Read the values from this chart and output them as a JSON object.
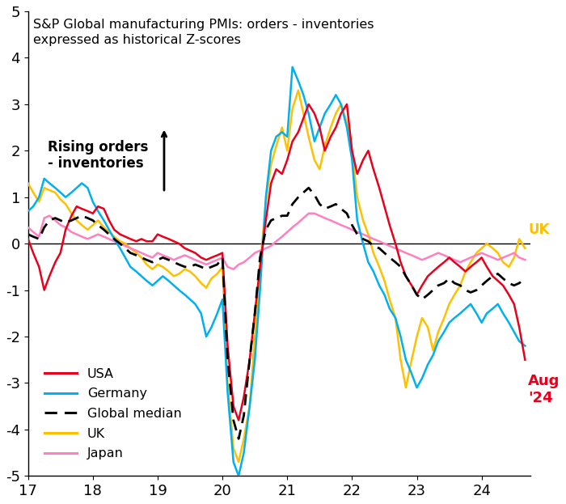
{
  "title_line1": "S&P Global manufacturing PMIs: orders - inventories",
  "title_line2": "expressed as historical Z-scores",
  "annotation_text": "Rising orders\n- inventories",
  "ylim": [
    -5,
    5
  ],
  "xlim": [
    17,
    24.75
  ],
  "yticks": [
    -5,
    -4,
    -3,
    -2,
    -1,
    0,
    1,
    2,
    3,
    4,
    5
  ],
  "xticks": [
    17,
    18,
    19,
    20,
    21,
    22,
    23,
    24
  ],
  "colors": {
    "USA": "#e8001c",
    "Germany": "#00b0f0",
    "Global_median": "#000000",
    "UK": "#ffc000",
    "Japan": "#ff80c0"
  },
  "usa": {
    "x": [
      17.0,
      17.08,
      17.17,
      17.25,
      17.33,
      17.42,
      17.5,
      17.58,
      17.67,
      17.75,
      17.83,
      17.92,
      18.0,
      18.08,
      18.17,
      18.25,
      18.33,
      18.42,
      18.5,
      18.58,
      18.67,
      18.75,
      18.83,
      18.92,
      19.0,
      19.08,
      19.17,
      19.25,
      19.33,
      19.42,
      19.5,
      19.58,
      19.67,
      19.75,
      19.83,
      19.92,
      20.0,
      20.08,
      20.17,
      20.25,
      20.33,
      20.42,
      20.5,
      20.58,
      20.67,
      20.75,
      20.83,
      20.92,
      21.0,
      21.08,
      21.17,
      21.25,
      21.33,
      21.42,
      21.5,
      21.58,
      21.67,
      21.75,
      21.83,
      21.92,
      22.0,
      22.08,
      22.17,
      22.25,
      22.33,
      22.42,
      22.5,
      22.58,
      22.67,
      22.75,
      22.83,
      22.92,
      23.0,
      23.08,
      23.17,
      23.25,
      23.33,
      23.42,
      23.5,
      23.58,
      23.67,
      23.75,
      23.83,
      23.92,
      24.0,
      24.08,
      24.17,
      24.25,
      24.33,
      24.42,
      24.5,
      24.58,
      24.67
    ],
    "y": [
      0.1,
      -0.2,
      -0.5,
      -1.0,
      -0.7,
      -0.4,
      -0.2,
      0.3,
      0.6,
      0.8,
      0.75,
      0.7,
      0.65,
      0.8,
      0.75,
      0.5,
      0.3,
      0.2,
      0.15,
      0.1,
      0.05,
      0.1,
      0.05,
      0.05,
      0.2,
      0.15,
      0.1,
      0.05,
      0.0,
      -0.1,
      -0.15,
      -0.2,
      -0.3,
      -0.35,
      -0.3,
      -0.25,
      -0.2,
      -2.2,
      -3.5,
      -3.8,
      -3.3,
      -2.5,
      -1.5,
      -0.5,
      0.5,
      1.3,
      1.6,
      1.5,
      1.8,
      2.2,
      2.4,
      2.7,
      3.0,
      2.8,
      2.5,
      2.0,
      2.3,
      2.5,
      2.8,
      3.0,
      2.0,
      1.5,
      1.8,
      2.0,
      1.6,
      1.2,
      0.8,
      0.4,
      0.0,
      -0.4,
      -0.7,
      -0.9,
      -1.1,
      -0.9,
      -0.7,
      -0.6,
      -0.5,
      -0.4,
      -0.3,
      -0.4,
      -0.5,
      -0.6,
      -0.5,
      -0.4,
      -0.3,
      -0.5,
      -0.7,
      -0.8,
      -0.9,
      -1.1,
      -1.3,
      -1.8,
      -2.5
    ]
  },
  "germany": {
    "x": [
      17.0,
      17.08,
      17.17,
      17.25,
      17.33,
      17.42,
      17.5,
      17.58,
      17.67,
      17.75,
      17.83,
      17.92,
      18.0,
      18.08,
      18.17,
      18.25,
      18.33,
      18.42,
      18.5,
      18.58,
      18.67,
      18.75,
      18.83,
      18.92,
      19.0,
      19.08,
      19.17,
      19.25,
      19.33,
      19.42,
      19.5,
      19.58,
      19.67,
      19.75,
      19.83,
      19.92,
      20.0,
      20.08,
      20.17,
      20.25,
      20.33,
      20.42,
      20.5,
      20.58,
      20.67,
      20.75,
      20.83,
      20.92,
      21.0,
      21.08,
      21.17,
      21.25,
      21.33,
      21.42,
      21.5,
      21.58,
      21.67,
      21.75,
      21.83,
      21.92,
      22.0,
      22.08,
      22.17,
      22.25,
      22.33,
      22.42,
      22.5,
      22.58,
      22.67,
      22.75,
      22.83,
      22.92,
      23.0,
      23.08,
      23.17,
      23.25,
      23.33,
      23.42,
      23.5,
      23.58,
      23.67,
      23.75,
      23.83,
      23.92,
      24.0,
      24.08,
      24.17,
      24.25,
      24.33,
      24.42,
      24.5,
      24.58,
      24.67
    ],
    "y": [
      0.7,
      0.8,
      1.0,
      1.4,
      1.3,
      1.2,
      1.1,
      1.0,
      1.1,
      1.2,
      1.3,
      1.2,
      0.9,
      0.7,
      0.5,
      0.3,
      0.1,
      -0.1,
      -0.3,
      -0.5,
      -0.6,
      -0.7,
      -0.8,
      -0.9,
      -0.8,
      -0.7,
      -0.8,
      -0.9,
      -1.0,
      -1.1,
      -1.2,
      -1.3,
      -1.5,
      -2.0,
      -1.8,
      -1.5,
      -1.2,
      -3.2,
      -4.7,
      -5.0,
      -4.5,
      -3.5,
      -2.5,
      -1.0,
      1.0,
      2.0,
      2.3,
      2.4,
      2.3,
      3.8,
      3.5,
      3.2,
      2.8,
      2.2,
      2.5,
      2.8,
      3.0,
      3.2,
      3.0,
      2.5,
      1.8,
      0.5,
      0.0,
      -0.4,
      -0.6,
      -0.9,
      -1.1,
      -1.4,
      -1.6,
      -2.0,
      -2.5,
      -2.8,
      -3.1,
      -2.9,
      -2.6,
      -2.4,
      -2.1,
      -1.9,
      -1.7,
      -1.6,
      -1.5,
      -1.4,
      -1.3,
      -1.5,
      -1.7,
      -1.5,
      -1.4,
      -1.3,
      -1.5,
      -1.7,
      -1.9,
      -2.1,
      -2.2
    ]
  },
  "global_median": {
    "x": [
      17.0,
      17.08,
      17.17,
      17.25,
      17.33,
      17.42,
      17.5,
      17.58,
      17.67,
      17.75,
      17.83,
      17.92,
      18.0,
      18.08,
      18.17,
      18.25,
      18.33,
      18.42,
      18.5,
      18.58,
      18.67,
      18.75,
      18.83,
      18.92,
      19.0,
      19.08,
      19.17,
      19.25,
      19.33,
      19.42,
      19.5,
      19.58,
      19.67,
      19.75,
      19.83,
      19.92,
      20.0,
      20.08,
      20.17,
      20.25,
      20.33,
      20.42,
      20.5,
      20.58,
      20.67,
      20.75,
      20.83,
      20.92,
      21.0,
      21.08,
      21.17,
      21.25,
      21.33,
      21.42,
      21.5,
      21.58,
      21.67,
      21.75,
      21.83,
      21.92,
      22.0,
      22.08,
      22.17,
      22.25,
      22.33,
      22.42,
      22.5,
      22.58,
      22.67,
      22.75,
      22.83,
      22.92,
      23.0,
      23.08,
      23.17,
      23.25,
      23.33,
      23.42,
      23.5,
      23.58,
      23.67,
      23.75,
      23.83,
      23.92,
      24.0,
      24.08,
      24.17,
      24.25,
      24.33,
      24.42,
      24.5,
      24.58,
      24.67
    ],
    "y": [
      0.2,
      0.15,
      0.1,
      0.35,
      0.5,
      0.55,
      0.5,
      0.45,
      0.5,
      0.55,
      0.6,
      0.55,
      0.5,
      0.4,
      0.3,
      0.2,
      0.1,
      0.0,
      -0.1,
      -0.2,
      -0.25,
      -0.3,
      -0.35,
      -0.4,
      -0.35,
      -0.3,
      -0.35,
      -0.4,
      -0.45,
      -0.5,
      -0.5,
      -0.45,
      -0.5,
      -0.55,
      -0.5,
      -0.45,
      -0.3,
      -2.5,
      -3.8,
      -4.2,
      -3.7,
      -2.5,
      -1.5,
      -0.3,
      0.3,
      0.5,
      0.55,
      0.6,
      0.6,
      0.85,
      1.0,
      1.1,
      1.2,
      1.05,
      0.85,
      0.75,
      0.8,
      0.85,
      0.75,
      0.65,
      0.4,
      0.2,
      0.1,
      0.05,
      -0.05,
      -0.1,
      -0.2,
      -0.3,
      -0.4,
      -0.5,
      -0.7,
      -0.9,
      -1.1,
      -1.2,
      -1.1,
      -1.0,
      -0.9,
      -0.85,
      -0.75,
      -0.85,
      -0.9,
      -1.0,
      -1.05,
      -1.0,
      -0.9,
      -0.8,
      -0.7,
      -0.65,
      -0.75,
      -0.85,
      -0.9,
      -0.85,
      -0.75
    ]
  },
  "uk": {
    "x": [
      17.0,
      17.08,
      17.17,
      17.25,
      17.33,
      17.42,
      17.5,
      17.58,
      17.67,
      17.75,
      17.83,
      17.92,
      18.0,
      18.08,
      18.17,
      18.25,
      18.33,
      18.42,
      18.5,
      18.58,
      18.67,
      18.75,
      18.83,
      18.92,
      19.0,
      19.08,
      19.17,
      19.25,
      19.33,
      19.42,
      19.5,
      19.58,
      19.67,
      19.75,
      19.83,
      19.92,
      20.0,
      20.08,
      20.17,
      20.25,
      20.33,
      20.42,
      20.5,
      20.58,
      20.67,
      20.75,
      20.83,
      20.92,
      21.0,
      21.08,
      21.17,
      21.25,
      21.33,
      21.42,
      21.5,
      21.58,
      21.67,
      21.75,
      21.83,
      21.92,
      22.0,
      22.08,
      22.17,
      22.25,
      22.33,
      22.42,
      22.5,
      22.58,
      22.67,
      22.75,
      22.83,
      22.92,
      23.0,
      23.08,
      23.17,
      23.25,
      23.33,
      23.42,
      23.5,
      23.58,
      23.67,
      23.75,
      23.83,
      23.92,
      24.0,
      24.08,
      24.17,
      24.25,
      24.33,
      24.42,
      24.5,
      24.58,
      24.67
    ],
    "y": [
      1.3,
      1.1,
      0.9,
      1.2,
      1.15,
      1.1,
      0.95,
      0.85,
      0.65,
      0.5,
      0.4,
      0.3,
      0.4,
      0.5,
      0.35,
      0.25,
      0.15,
      0.05,
      0.0,
      -0.1,
      -0.2,
      -0.3,
      -0.45,
      -0.55,
      -0.45,
      -0.5,
      -0.6,
      -0.7,
      -0.65,
      -0.55,
      -0.6,
      -0.7,
      -0.85,
      -0.95,
      -0.75,
      -0.65,
      -0.5,
      -3.0,
      -4.4,
      -4.7,
      -4.2,
      -3.5,
      -2.0,
      -0.5,
      0.9,
      1.7,
      2.1,
      2.5,
      2.0,
      2.9,
      3.3,
      2.8,
      2.3,
      1.8,
      1.6,
      2.1,
      2.5,
      2.8,
      3.0,
      2.6,
      2.0,
      1.0,
      0.5,
      0.2,
      -0.2,
      -0.5,
      -0.8,
      -1.2,
      -1.6,
      -2.5,
      -3.1,
      -2.5,
      -2.0,
      -1.6,
      -1.8,
      -2.3,
      -1.9,
      -1.6,
      -1.3,
      -1.1,
      -0.9,
      -0.6,
      -0.4,
      -0.2,
      -0.1,
      0.0,
      -0.1,
      -0.2,
      -0.4,
      -0.5,
      -0.3,
      0.1,
      -0.1
    ]
  },
  "japan": {
    "x": [
      17.0,
      17.08,
      17.17,
      17.25,
      17.33,
      17.42,
      17.5,
      17.58,
      17.67,
      17.75,
      17.83,
      17.92,
      18.0,
      18.08,
      18.17,
      18.25,
      18.33,
      18.42,
      18.5,
      18.58,
      18.67,
      18.75,
      18.83,
      18.92,
      19.0,
      19.08,
      19.17,
      19.25,
      19.33,
      19.42,
      19.5,
      19.58,
      19.67,
      19.75,
      19.83,
      19.92,
      20.0,
      20.08,
      20.17,
      20.25,
      20.33,
      20.42,
      20.5,
      20.58,
      20.67,
      20.75,
      20.83,
      20.92,
      21.0,
      21.08,
      21.17,
      21.25,
      21.33,
      21.42,
      21.5,
      21.58,
      21.67,
      21.75,
      21.83,
      21.92,
      22.0,
      22.08,
      22.17,
      22.25,
      22.33,
      22.42,
      22.5,
      22.58,
      22.67,
      22.75,
      22.83,
      22.92,
      23.0,
      23.08,
      23.17,
      23.25,
      23.33,
      23.42,
      23.5,
      23.58,
      23.67,
      23.75,
      23.83,
      23.92,
      24.0,
      24.08,
      24.17,
      24.25,
      24.33,
      24.42,
      24.5,
      24.58,
      24.67
    ],
    "y": [
      0.35,
      0.25,
      0.15,
      0.55,
      0.6,
      0.5,
      0.4,
      0.35,
      0.25,
      0.2,
      0.15,
      0.1,
      0.15,
      0.2,
      0.15,
      0.1,
      0.05,
      0.0,
      -0.05,
      -0.1,
      -0.15,
      -0.2,
      -0.25,
      -0.3,
      -0.2,
      -0.25,
      -0.3,
      -0.35,
      -0.3,
      -0.25,
      -0.3,
      -0.35,
      -0.4,
      -0.45,
      -0.4,
      -0.35,
      -0.3,
      -0.5,
      -0.55,
      -0.45,
      -0.4,
      -0.3,
      -0.2,
      -0.15,
      -0.1,
      -0.05,
      0.05,
      0.15,
      0.25,
      0.35,
      0.45,
      0.55,
      0.65,
      0.65,
      0.6,
      0.55,
      0.5,
      0.45,
      0.4,
      0.35,
      0.3,
      0.25,
      0.2,
      0.15,
      0.1,
      0.05,
      0.0,
      -0.05,
      -0.1,
      -0.15,
      -0.2,
      -0.25,
      -0.3,
      -0.35,
      -0.3,
      -0.25,
      -0.2,
      -0.25,
      -0.3,
      -0.35,
      -0.4,
      -0.35,
      -0.3,
      -0.25,
      -0.2,
      -0.25,
      -0.3,
      -0.35,
      -0.3,
      -0.25,
      -0.2,
      -0.3,
      -0.35
    ]
  }
}
